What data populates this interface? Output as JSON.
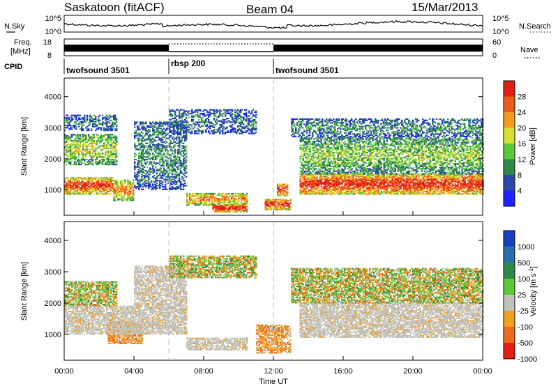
{
  "header": {
    "title": "Saskatoon (fitACF)",
    "beam": "Beam 04",
    "date": "15/Mar/2013"
  },
  "noise_panel": {
    "left_label": "N.Sky",
    "right_label": "N.Search",
    "left_ticks": [
      "10^5",
      "10^0"
    ],
    "right_ticks": [
      "10^5",
      "10^0"
    ]
  },
  "freq_panel": {
    "left_label_1": "Freq.",
    "left_label_2": "[MHz]",
    "left_ticks": [
      "18",
      "8"
    ],
    "right_label": "Nave",
    "right_ticks": [
      "60",
      "0"
    ]
  },
  "cpid": {
    "label": "CPID",
    "segments": [
      {
        "name": "twofsound 3501",
        "start_h": 0,
        "end_h": 6
      },
      {
        "name": "rbsp 200",
        "start_h": 6,
        "end_h": 12
      },
      {
        "name": "twofsound 3501",
        "start_h": 12,
        "end_h": 24
      }
    ]
  },
  "colors": {
    "power": [
      "#1e22ff",
      "#2a4aa8",
      "#2f8a4a",
      "#5dc83a",
      "#d8e030",
      "#f59a1a",
      "#ec5a1a",
      "#e31e16"
    ],
    "velocity": [
      "#1a3fc2",
      "#2a6eaa",
      "#2f8a4a",
      "#5dc83a",
      "#c2c2ba",
      "#f0a020",
      "#ec6a1a",
      "#e31e16"
    ]
  },
  "chart_data": [
    {
      "type": "heatmap",
      "name": "power",
      "ylabel": "Slant Range [km]",
      "ylim": [
        180,
        4600
      ],
      "yticks": [
        1000,
        2000,
        3000,
        4000
      ],
      "xlim": [
        0,
        24
      ],
      "colorbar": {
        "label": "Power [dB]",
        "range": [
          0,
          32
        ],
        "ticks": [
          4,
          8,
          12,
          16,
          20,
          24,
          28
        ]
      },
      "features": [
        {
          "t0": 0.0,
          "t1": 2.8,
          "r0": 850,
          "r1": 1400,
          "level": 0.85
        },
        {
          "t0": 2.8,
          "t1": 4.0,
          "r0": 650,
          "r1": 1300,
          "level": 0.7
        },
        {
          "t0": 0.0,
          "t1": 3.0,
          "r0": 1800,
          "r1": 2800,
          "level": 0.5
        },
        {
          "t0": 0.0,
          "t1": 3.0,
          "r0": 2900,
          "r1": 3400,
          "level": 0.25
        },
        {
          "t0": 4.0,
          "t1": 7.0,
          "r0": 1000,
          "r1": 3200,
          "level": 0.3
        },
        {
          "t0": 6.0,
          "t1": 11.0,
          "r0": 2800,
          "r1": 3600,
          "level": 0.25
        },
        {
          "t0": 7.0,
          "t1": 10.5,
          "r0": 500,
          "r1": 900,
          "level": 0.7
        },
        {
          "t0": 8.5,
          "t1": 10.5,
          "r0": 280,
          "r1": 520,
          "level": 0.95
        },
        {
          "t0": 11.5,
          "t1": 13.0,
          "r0": 350,
          "r1": 700,
          "level": 0.9
        },
        {
          "t0": 12.2,
          "t1": 12.8,
          "r0": 800,
          "r1": 1200,
          "level": 0.9
        },
        {
          "t0": 13.5,
          "t1": 24.0,
          "r0": 850,
          "r1": 1500,
          "level": 0.9
        },
        {
          "t0": 13.5,
          "t1": 24.0,
          "r0": 1500,
          "r1": 2700,
          "level": 0.45
        },
        {
          "t0": 13.0,
          "t1": 24.0,
          "r0": 2700,
          "r1": 3300,
          "level": 0.3
        }
      ]
    },
    {
      "type": "heatmap",
      "name": "velocity",
      "ylabel": "Slant Range [km]",
      "ylim": [
        180,
        4600
      ],
      "yticks": [
        1000,
        2000,
        3000,
        4000
      ],
      "xlim": [
        0,
        24
      ],
      "xticks": [
        "00:00",
        "04:00",
        "08:00",
        "12:00",
        "16:00",
        "20:00",
        "00:00"
      ],
      "xlabel": "Time UT",
      "colorbar": {
        "label": "Velocity [m s^-1]",
        "ticks": [
          "1000",
          "500",
          "100",
          "25",
          "-25",
          "-100",
          "-500",
          "-1000"
        ]
      },
      "features": [
        {
          "t0": 0.0,
          "t1": 3.0,
          "r0": 1900,
          "r1": 2700,
          "level": "mixed"
        },
        {
          "t0": 2.5,
          "t1": 4.5,
          "r0": 700,
          "r1": 1400,
          "level": "away"
        },
        {
          "t0": 0.0,
          "t1": 4.0,
          "r0": 1000,
          "r1": 1900,
          "level": "ground"
        },
        {
          "t0": 4.0,
          "t1": 7.0,
          "r0": 1000,
          "r1": 3200,
          "level": "ground"
        },
        {
          "t0": 6.0,
          "t1": 11.0,
          "r0": 2800,
          "r1": 3500,
          "level": "mixed"
        },
        {
          "t0": 7.0,
          "t1": 10.5,
          "r0": 500,
          "r1": 900,
          "level": "ground"
        },
        {
          "t0": 11.0,
          "t1": 13.0,
          "r0": 400,
          "r1": 1300,
          "level": "away"
        },
        {
          "t0": 13.5,
          "t1": 24.0,
          "r0": 900,
          "r1": 2000,
          "level": "ground"
        },
        {
          "t0": 13.0,
          "t1": 24.0,
          "r0": 2000,
          "r1": 3100,
          "level": "mixed"
        }
      ]
    }
  ]
}
